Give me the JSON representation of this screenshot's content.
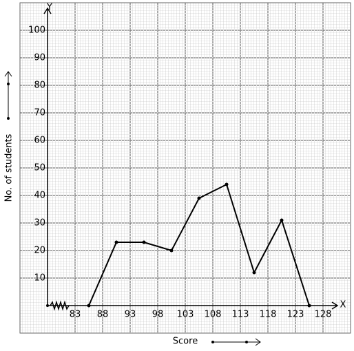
{
  "chart_data": {
    "type": "line",
    "x_label": "Score",
    "y_label": "No. of students",
    "x_axis_name": "X",
    "y_axis_name": "Y",
    "x": [
      85.5,
      90.5,
      95.5,
      100.5,
      105.5,
      110.5,
      115.5,
      120.5,
      125.5
    ],
    "series": [
      {
        "color": "#000000",
        "values": [
          0,
          23,
          23,
          20,
          39,
          44,
          12,
          31,
          0
        ]
      }
    ],
    "xlim": [
      73,
      133
    ],
    "ylim": [
      -10,
      110
    ],
    "xticks": [
      83,
      88,
      93,
      98,
      103,
      108,
      113,
      118,
      123,
      128
    ],
    "yticks": [
      10,
      20,
      30,
      40,
      50,
      60,
      70,
      80,
      90,
      100
    ],
    "grid": true
  }
}
